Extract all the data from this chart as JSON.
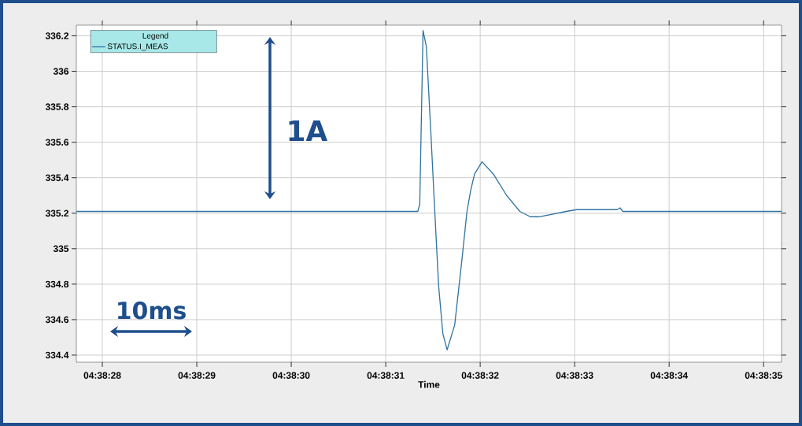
{
  "chart_data": {
    "type": "line",
    "xlabel": "Time",
    "legend_title": "Legend",
    "legend": "top left",
    "grid": true,
    "x": [
      4.64103472,
      4.64203888,
      4.64204444,
      4.64205416,
      4.64206388,
      4.64207777,
      4.64208888,
      4.6421,
      4.6421125,
      4.642125,
      4.64214722,
      4.64216805,
      4.64218333,
      4.64219444,
      4.64220555,
      4.64222777,
      4.64226111,
      4.6423,
      4.64233888,
      4.64236944,
      4.64239444,
      4.64242222,
      4.642475,
      4.64250555,
      4.642625,
      4.64263333,
      4.64264166,
      4.64310833
    ],
    "series": [
      {
        "name": "STATUS.I_MEAS",
        "color": "#2f73a0",
        "values": [
          335.21,
          335.21,
          335.25,
          336.23,
          336.14,
          335.63,
          335.2,
          334.79,
          334.52,
          334.43,
          334.57,
          334.93,
          335.21,
          335.33,
          335.42,
          335.49,
          335.42,
          335.3,
          335.21,
          335.18,
          335.18,
          335.19,
          335.21,
          335.22,
          335.22,
          335.23,
          335.21,
          335.21
        ]
      }
    ],
    "xlim": [
      4.64103472,
      4.64310833
    ],
    "xticks": [
      {
        "value": 4.64111111,
        "label": "04:38:28"
      },
      {
        "value": 4.64138889,
        "label": "04:38:29"
      },
      {
        "value": 4.64166667,
        "label": "04:38:30"
      },
      {
        "value": 4.64194444,
        "label": "04:38:31"
      },
      {
        "value": 4.64222222,
        "label": "04:38:32"
      },
      {
        "value": 4.6425,
        "label": "04:38:33"
      },
      {
        "value": 4.64277778,
        "label": "04:38:34"
      },
      {
        "value": 4.64305556,
        "label": "04:38:35"
      }
    ],
    "ylim": [
      334.36,
      336.26
    ],
    "yticks": [
      334.4,
      334.6,
      334.8,
      335,
      335.2,
      335.4,
      335.6,
      335.8,
      336,
      336.2
    ],
    "annotations": [
      "1A",
      "10ms"
    ]
  }
}
